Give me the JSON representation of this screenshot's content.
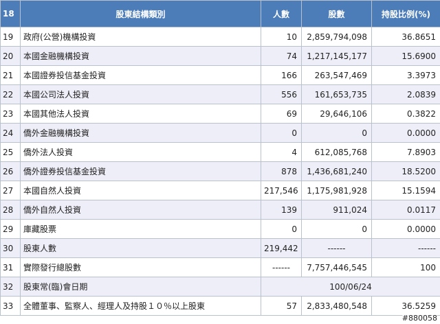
{
  "header": {
    "index": "18",
    "category": "股東結構類別",
    "people": "人數",
    "shares": "股數",
    "ratio": "持股比例(%)"
  },
  "rows": [
    {
      "no": "19",
      "label": "政府(公營)機構投資",
      "people": "10",
      "shares": "2,859,794,098",
      "ratio": "36.8651"
    },
    {
      "no": "20",
      "label": "本國金融機構投資",
      "people": "74",
      "shares": "1,217,145,177",
      "ratio": "15.6900"
    },
    {
      "no": "21",
      "label": "本國證券投信基金投資",
      "people": "166",
      "shares": "263,547,469",
      "ratio": "3.3973"
    },
    {
      "no": "22",
      "label": "本國公司法人投資",
      "people": "556",
      "shares": "161,653,735",
      "ratio": "2.0839"
    },
    {
      "no": "23",
      "label": "本國其他法人投資",
      "people": "69",
      "shares": "29,646,106",
      "ratio": "0.3822"
    },
    {
      "no": "24",
      "label": "僑外金融機構投資",
      "people": "0",
      "shares": "0",
      "ratio": "0.0000"
    },
    {
      "no": "25",
      "label": "僑外法人投資",
      "people": "4",
      "shares": "612,085,768",
      "ratio": "7.8903"
    },
    {
      "no": "26",
      "label": "僑外證券投信基金投資",
      "people": "878",
      "shares": "1,436,681,240",
      "ratio": "18.5200"
    },
    {
      "no": "27",
      "label": "本國自然人投資",
      "people": "217,546",
      "shares": "1,175,981,928",
      "ratio": "15.1594"
    },
    {
      "no": "28",
      "label": "僑外自然人投資",
      "people": "139",
      "shares": "911,024",
      "ratio": "0.0117"
    },
    {
      "no": "29",
      "label": "庫藏股票",
      "people": "0",
      "shares": "0",
      "ratio": "0.0000"
    }
  ],
  "row30": {
    "no": "30",
    "label": "股東人數",
    "people": "219,442",
    "shares": "------",
    "ratio": "------"
  },
  "row31": {
    "no": "31",
    "label": "實際發行總股數",
    "people": "------",
    "shares": "7,757,446,545",
    "ratio": "100"
  },
  "row32": {
    "no": "32",
    "label": "股東常(臨)會日期",
    "value": "100/06/24"
  },
  "row33": {
    "no": "33",
    "label": "全體董事、監察人、經理人及持股１０％以上股東",
    "people": "57",
    "shares": "2,833,480,548",
    "ratio": "36.5259"
  },
  "watermark": "#880058"
}
